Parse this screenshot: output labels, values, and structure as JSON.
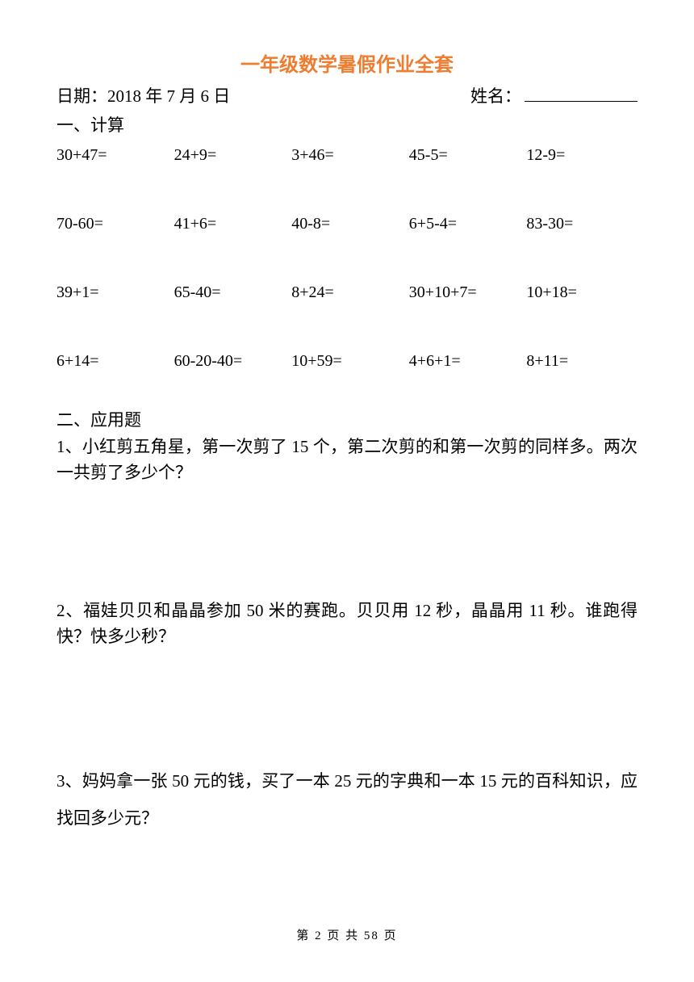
{
  "colors": {
    "title": "#ed7d31",
    "text": "#000000",
    "background": "#ffffff"
  },
  "typography": {
    "title_fontsize": 24,
    "body_fontsize": 21,
    "footer_fontsize": 15
  },
  "title": "一年级数学暑假作业全套",
  "header": {
    "date_label": "日期：",
    "date_value": "2018 年 7 月 6 日",
    "name_label": "姓名："
  },
  "section1": {
    "heading": "一、计算",
    "rows": [
      [
        "30+47=",
        "24+9=",
        "3+46=",
        "45-5=",
        "12-9="
      ],
      [
        "70-60=",
        "41+6=",
        "40-8=",
        "6+5-4=",
        "83-30="
      ],
      [
        "39+1=",
        "65-40=",
        "8+24=",
        "30+10+7=",
        "10+18="
      ],
      [
        "6+14=",
        "60-20-40=",
        "10+59=",
        "4+6+1=",
        "8+11="
      ]
    ]
  },
  "section2": {
    "heading": "二、应用题",
    "problems": [
      "1、小红剪五角星，第一次剪了 15 个，第二次剪的和第一次剪的同样多。两次一共剪了多少个？",
      "2、福娃贝贝和晶晶参加 50 米的赛跑。贝贝用 12 秒，晶晶用 11 秒。谁跑得快？快多少秒？",
      "3、妈妈拿一张 50 元的钱，买了一本 25 元的字典和一本 15 元的百科知识，应找回多少元？"
    ]
  },
  "footer": {
    "text": "第 2 页 共 58 页"
  }
}
